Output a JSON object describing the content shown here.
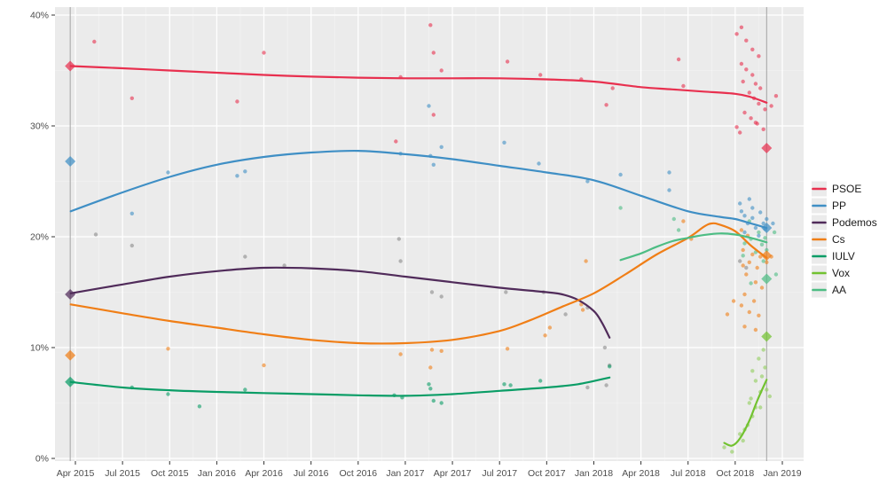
{
  "chart_data": {
    "type": "scatter",
    "subtype": "poll-scatter-with-smoothed-trend-lines",
    "title": "",
    "month_unit": "months_after_apr_2015",
    "x_tick_labels": [
      "Apr 2015",
      "Jul 2015",
      "Oct 2015",
      "Jan 2016",
      "Apr 2016",
      "Jul 2016",
      "Oct 2016",
      "Jan 2017",
      "Apr 2017",
      "Jul 2017",
      "Oct 2017",
      "Jan 2018",
      "Apr 2018",
      "Jul 2018",
      "Oct 2018",
      "Jan 2019"
    ],
    "y_tick_labels": [
      "0%",
      "10%",
      "20%",
      "30%",
      "40%"
    ],
    "y_tick_values": [
      0,
      10,
      20,
      30,
      40
    ],
    "ylim": [
      0,
      40
    ],
    "grid": true,
    "legend_position": "right",
    "plot_bg": "#ebebeb",
    "grid_color": "#ffffff",
    "axis_text_color": "#4d4d4d",
    "election_line_color": "#a3a3a3",
    "series": [
      {
        "name": "PSOE",
        "color": "#e8304f",
        "dot_color": "#e8304f",
        "line": [
          [
            -0.3,
            35.4
          ],
          [
            3,
            35.2
          ],
          [
            6,
            35.0
          ],
          [
            9,
            34.8
          ],
          [
            12,
            34.6
          ],
          [
            15,
            34.45
          ],
          [
            18,
            34.35
          ],
          [
            21,
            34.3
          ],
          [
            24,
            34.3
          ],
          [
            27,
            34.3
          ],
          [
            30,
            34.2
          ],
          [
            33,
            34.0
          ],
          [
            36,
            33.5
          ],
          [
            38,
            33.3
          ],
          [
            40,
            33.1
          ],
          [
            42,
            32.9
          ],
          [
            43,
            32.6
          ],
          [
            44,
            32.1
          ]
        ],
        "dots": [
          [
            1.2,
            37.6
          ],
          [
            3.6,
            32.5
          ],
          [
            10.3,
            32.2
          ],
          [
            12.0,
            36.6
          ],
          [
            20.4,
            28.6
          ],
          [
            20.7,
            34.4
          ],
          [
            22.6,
            39.1
          ],
          [
            22.8,
            36.6
          ],
          [
            23.3,
            35.0
          ],
          [
            22.8,
            31.0
          ],
          [
            27.5,
            35.8
          ],
          [
            29.6,
            34.6
          ],
          [
            32.2,
            34.2
          ],
          [
            33.8,
            31.9
          ],
          [
            34.2,
            33.4
          ],
          [
            38.4,
            36.0
          ],
          [
            38.7,
            33.6
          ],
          [
            42.1,
            38.3
          ],
          [
            42.4,
            38.9
          ],
          [
            42.7,
            37.7
          ],
          [
            43.1,
            36.9
          ],
          [
            43.5,
            36.3
          ],
          [
            42.4,
            35.6
          ],
          [
            42.7,
            35.1
          ],
          [
            43.1,
            34.6
          ],
          [
            42.5,
            34.0
          ],
          [
            43.3,
            33.8
          ],
          [
            43.6,
            33.4
          ],
          [
            42.9,
            33.0
          ],
          [
            43.2,
            32.5
          ],
          [
            43.5,
            32.0
          ],
          [
            43.9,
            31.5
          ],
          [
            42.6,
            31.2
          ],
          [
            43.0,
            30.7
          ],
          [
            43.4,
            30.2
          ],
          [
            43.8,
            29.7
          ],
          [
            42.3,
            29.4
          ],
          [
            42.1,
            29.9
          ],
          [
            43.3,
            30.3
          ],
          [
            44.3,
            31.8
          ],
          [
            44.6,
            32.7
          ]
        ]
      },
      {
        "name": "PP",
        "color": "#3f8fc5",
        "dot_color": "#3f8fc5",
        "line": [
          [
            -0.3,
            22.3
          ],
          [
            3,
            24.0
          ],
          [
            6,
            25.4
          ],
          [
            9,
            26.5
          ],
          [
            12,
            27.2
          ],
          [
            15,
            27.6
          ],
          [
            18,
            27.75
          ],
          [
            21,
            27.45
          ],
          [
            24,
            27.0
          ],
          [
            27,
            26.4
          ],
          [
            30,
            25.8
          ],
          [
            33,
            25.1
          ],
          [
            36,
            23.7
          ],
          [
            39,
            22.3
          ],
          [
            41,
            21.8
          ],
          [
            42,
            21.6
          ],
          [
            43,
            21.2
          ],
          [
            44,
            20.8
          ]
        ],
        "dots": [
          [
            3.6,
            22.1
          ],
          [
            5.9,
            25.8
          ],
          [
            10.3,
            25.5
          ],
          [
            10.8,
            25.9
          ],
          [
            20.7,
            27.5
          ],
          [
            22.5,
            31.8
          ],
          [
            22.6,
            27.3
          ],
          [
            22.8,
            26.5
          ],
          [
            23.3,
            28.1
          ],
          [
            27.3,
            28.5
          ],
          [
            29.5,
            26.6
          ],
          [
            32.6,
            25.0
          ],
          [
            34.7,
            25.6
          ],
          [
            37.8,
            25.8
          ],
          [
            37.8,
            24.2
          ],
          [
            42.3,
            23.0
          ],
          [
            42.4,
            22.3
          ],
          [
            43.1,
            22.6
          ],
          [
            42.6,
            21.9
          ],
          [
            43.6,
            22.2
          ],
          [
            42.8,
            21.2
          ],
          [
            43.3,
            20.8
          ],
          [
            43.8,
            21.2
          ],
          [
            42.6,
            20.4
          ],
          [
            43.5,
            20.1
          ],
          [
            44.0,
            21.6
          ],
          [
            43.1,
            21.7
          ],
          [
            43.9,
            20.7
          ],
          [
            42.9,
            23.4
          ],
          [
            44.4,
            21.2
          ]
        ]
      },
      {
        "name": "Podemos",
        "color": "#502b5a",
        "dot_color": "#8a8a8a",
        "line": [
          [
            -0.3,
            14.9
          ],
          [
            3,
            15.7
          ],
          [
            6,
            16.4
          ],
          [
            9,
            16.9
          ],
          [
            12,
            17.2
          ],
          [
            15,
            17.15
          ],
          [
            18,
            16.9
          ],
          [
            21,
            16.4
          ],
          [
            24,
            15.9
          ],
          [
            27,
            15.4
          ],
          [
            30,
            15.0
          ],
          [
            31,
            14.8
          ],
          [
            32,
            14.3
          ],
          [
            33,
            13.3
          ],
          [
            33.5,
            12.3
          ],
          [
            34,
            10.9
          ]
        ],
        "dots": [
          [
            1.3,
            20.2
          ],
          [
            3.6,
            19.2
          ],
          [
            10.8,
            18.2
          ],
          [
            13.3,
            17.4
          ],
          [
            20.6,
            19.8
          ],
          [
            20.7,
            17.8
          ],
          [
            22.7,
            15.0
          ],
          [
            23.3,
            14.6
          ],
          [
            27.4,
            15.0
          ],
          [
            29.8,
            15.0
          ],
          [
            31.2,
            13.0
          ],
          [
            32.6,
            13.6
          ],
          [
            33.7,
            10.0
          ],
          [
            34.0,
            8.4
          ],
          [
            32.6,
            6.4
          ],
          [
            33.8,
            6.6
          ],
          [
            42.3,
            17.8
          ],
          [
            42.7,
            17.2
          ]
        ]
      },
      {
        "name": "Cs",
        "color": "#f07e16",
        "dot_color": "#f07e16",
        "line": [
          [
            -0.3,
            13.9
          ],
          [
            3,
            13.1
          ],
          [
            6,
            12.4
          ],
          [
            9,
            11.8
          ],
          [
            12,
            11.2
          ],
          [
            15,
            10.7
          ],
          [
            18,
            10.4
          ],
          [
            21,
            10.4
          ],
          [
            24,
            10.7
          ],
          [
            27,
            11.5
          ],
          [
            29,
            12.5
          ],
          [
            31,
            13.7
          ],
          [
            33,
            14.9
          ],
          [
            35,
            16.6
          ],
          [
            37,
            18.4
          ],
          [
            39,
            19.9
          ],
          [
            40,
            20.9
          ],
          [
            40.5,
            21.2
          ],
          [
            41,
            21.1
          ],
          [
            42,
            20.5
          ],
          [
            43,
            19.2
          ],
          [
            44,
            18.1
          ]
        ],
        "dots": [
          [
            5.9,
            9.9
          ],
          [
            12.0,
            8.4
          ],
          [
            20.7,
            9.4
          ],
          [
            22.7,
            9.8
          ],
          [
            22.6,
            8.2
          ],
          [
            23.3,
            9.7
          ],
          [
            27.5,
            9.9
          ],
          [
            29.9,
            11.1
          ],
          [
            30.2,
            11.8
          ],
          [
            32.2,
            13.9
          ],
          [
            32.3,
            13.4
          ],
          [
            32.5,
            17.8
          ],
          [
            38.7,
            21.4
          ],
          [
            39.2,
            19.8
          ],
          [
            41.5,
            13.0
          ],
          [
            41.9,
            14.2
          ],
          [
            42.4,
            20.6
          ],
          [
            42.8,
            20.1
          ],
          [
            42.5,
            18.8
          ],
          [
            43.1,
            18.4
          ],
          [
            43.6,
            18.2
          ],
          [
            42.9,
            17.7
          ],
          [
            42.5,
            17.4
          ],
          [
            43.4,
            17.2
          ],
          [
            44.0,
            17.7
          ],
          [
            42.7,
            16.6
          ],
          [
            43.3,
            15.9
          ],
          [
            43.7,
            15.4
          ],
          [
            42.6,
            14.8
          ],
          [
            43.2,
            14.2
          ],
          [
            42.9,
            13.2
          ],
          [
            43.5,
            12.9
          ],
          [
            42.4,
            13.8
          ],
          [
            42.6,
            11.9
          ],
          [
            43.3,
            11.6
          ],
          [
            44.3,
            18.2
          ]
        ]
      },
      {
        "name": "IULV",
        "color": "#0a9d66",
        "dot_color": "#0a9d66",
        "line": [
          [
            -0.3,
            6.9
          ],
          [
            3,
            6.4
          ],
          [
            6,
            6.15
          ],
          [
            9,
            6.0
          ],
          [
            12,
            5.9
          ],
          [
            15,
            5.8
          ],
          [
            18,
            5.7
          ],
          [
            21,
            5.65
          ],
          [
            24,
            5.8
          ],
          [
            27,
            6.1
          ],
          [
            30,
            6.4
          ],
          [
            32,
            6.7
          ],
          [
            34,
            7.3
          ]
        ],
        "dots": [
          [
            3.6,
            6.4
          ],
          [
            5.9,
            5.8
          ],
          [
            7.9,
            4.7
          ],
          [
            10.8,
            6.2
          ],
          [
            20.3,
            5.7
          ],
          [
            20.8,
            5.5
          ],
          [
            22.5,
            6.7
          ],
          [
            22.6,
            6.3
          ],
          [
            22.8,
            5.2
          ],
          [
            23.3,
            5.0
          ],
          [
            27.3,
            6.7
          ],
          [
            27.7,
            6.6
          ],
          [
            29.6,
            7.0
          ],
          [
            34.0,
            8.3
          ]
        ]
      },
      {
        "name": "Vox",
        "color": "#72c230",
        "dot_color": "#8fcd5a",
        "line": [
          [
            41.3,
            1.4
          ],
          [
            41.8,
            1.15
          ],
          [
            42.3,
            1.8
          ],
          [
            42.9,
            3.4
          ],
          [
            43.4,
            5.2
          ],
          [
            44,
            7.1
          ]
        ],
        "dots": [
          [
            41.3,
            1.0
          ],
          [
            41.8,
            0.6
          ],
          [
            42.5,
            1.6
          ],
          [
            42.8,
            3.0
          ],
          [
            43.1,
            3.8
          ],
          [
            43.3,
            4.6
          ],
          [
            43.0,
            5.4
          ],
          [
            43.6,
            6.0
          ],
          [
            43.3,
            7.0
          ],
          [
            43.7,
            7.4
          ],
          [
            43.9,
            8.2
          ],
          [
            43.1,
            7.9
          ],
          [
            43.5,
            9.0
          ],
          [
            42.9,
            5.0
          ],
          [
            42.3,
            2.2
          ],
          [
            43.6,
            4.6
          ],
          [
            44.0,
            6.2
          ],
          [
            43.8,
            9.8
          ],
          [
            42.6,
            2.6
          ],
          [
            44.2,
            5.6
          ]
        ]
      },
      {
        "name": "AA",
        "color": "#4dbd84",
        "dot_color": "#4dbd84",
        "line": [
          [
            34.7,
            17.9
          ],
          [
            36,
            18.5
          ],
          [
            37,
            19.1
          ],
          [
            38,
            19.6
          ],
          [
            39,
            19.9
          ],
          [
            40,
            20.15
          ],
          [
            41,
            20.3
          ],
          [
            42,
            20.2
          ],
          [
            43,
            19.9
          ],
          [
            44,
            19.5
          ]
        ],
        "dots": [
          [
            34.7,
            22.6
          ],
          [
            38.1,
            21.6
          ],
          [
            38.4,
            20.6
          ],
          [
            42.9,
            21.4
          ],
          [
            43.5,
            20.4
          ],
          [
            43.9,
            19.9
          ],
          [
            43.0,
            19.8
          ],
          [
            42.6,
            19.4
          ],
          [
            43.7,
            19.3
          ],
          [
            44.0,
            18.8
          ],
          [
            43.3,
            18.6
          ],
          [
            42.5,
            18.3
          ],
          [
            43.8,
            17.8
          ],
          [
            43.0,
            15.8
          ],
          [
            44.5,
            20.4
          ],
          [
            44.6,
            16.6
          ]
        ]
      }
    ],
    "elections": [
      {
        "month": -0.33,
        "results": [
          [
            "PSOE",
            35.4
          ],
          [
            "PP",
            26.8
          ],
          [
            "Podemos",
            14.8
          ],
          [
            "Cs",
            9.3
          ],
          [
            "IULV",
            6.9
          ]
        ]
      },
      {
        "month": 44.0,
        "results": [
          [
            "PSOE",
            28.0
          ],
          [
            "PP",
            20.8
          ],
          [
            "Cs",
            18.3
          ],
          [
            "AA",
            16.2
          ],
          [
            "Vox",
            11.0
          ]
        ]
      }
    ],
    "legend": {
      "labels": [
        "PSOE",
        "PP",
        "Podemos",
        "Cs",
        "IULV",
        "Vox",
        "AA"
      ]
    }
  }
}
